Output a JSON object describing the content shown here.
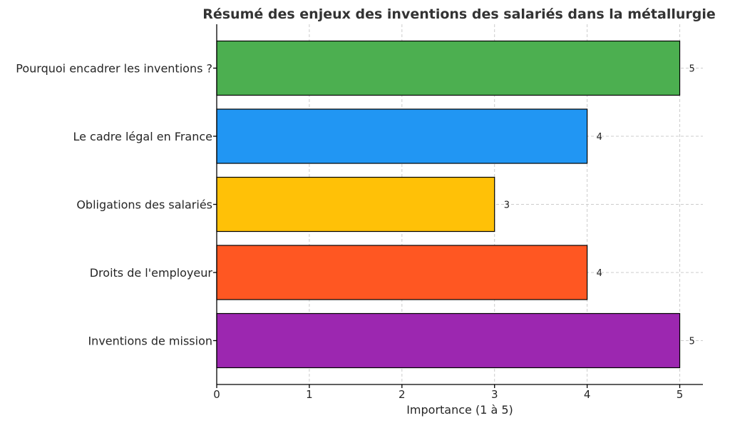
{
  "chart_data": {
    "type": "bar",
    "orientation": "horizontal",
    "title": "Résumé des enjeux des inventions des salariés dans la métallurgie",
    "xlabel": "Importance (1 à 5)",
    "ylabel": "",
    "xlim": [
      0,
      5.25
    ],
    "x_ticks": [
      "0",
      "1",
      "2",
      "3",
      "4",
      "5"
    ],
    "grid": true,
    "categories": [
      "Pourquoi encadrer les inventions ?",
      "Le cadre légal en France",
      "Obligations des salariés",
      "Droits de l'employeur",
      "Inventions de mission"
    ],
    "values": [
      5,
      4,
      3,
      4,
      5
    ],
    "value_labels": [
      "5",
      "4",
      "3",
      "4",
      "5"
    ],
    "colors": [
      "#4caf50",
      "#2196f3",
      "#ffc107",
      "#ff5722",
      "#9c27b0"
    ]
  }
}
